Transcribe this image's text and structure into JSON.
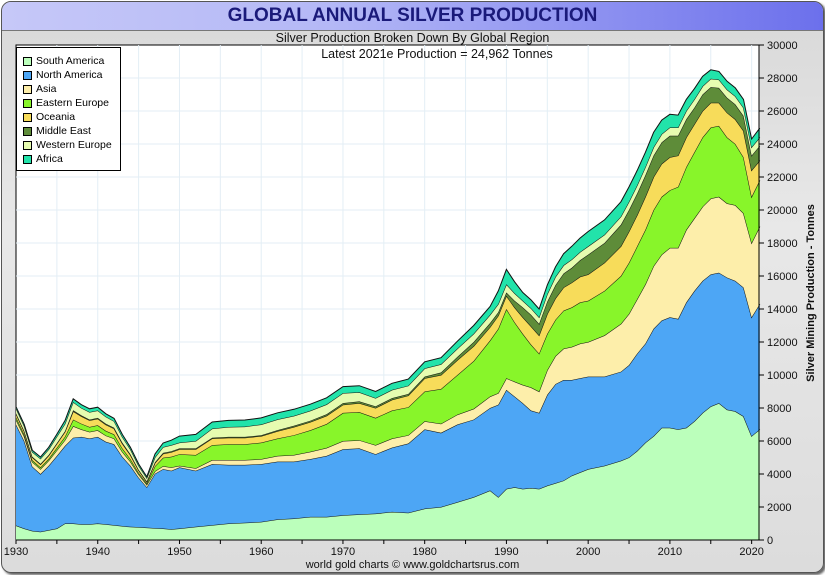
{
  "chart_data": {
    "type": "area",
    "stacked": true,
    "title": "GLOBAL ANNUAL SILVER PRODUCTION",
    "subtitle": "Silver Production Broken Down By Global Region",
    "annotation": "Latest 2021e Production = 24,962 Tonnes",
    "ylabel": "Silver Mining Production - Tonnes",
    "xlabel": "",
    "footer": "world gold charts © www.goldchartsrus.com",
    "xlim": [
      1930,
      2021
    ],
    "ylim": [
      0,
      30000
    ],
    "x_ticks": [
      1930,
      1940,
      1950,
      1960,
      1970,
      1980,
      1990,
      2000,
      2010,
      2020
    ],
    "y_ticks": [
      0,
      2000,
      4000,
      6000,
      8000,
      10000,
      12000,
      14000,
      16000,
      18000,
      20000,
      22000,
      24000,
      26000,
      28000,
      30000
    ],
    "grid": true,
    "legend_position": "top-left",
    "key_years": [
      1930,
      1931,
      1932,
      1933,
      1934,
      1935,
      1936,
      1937,
      1938,
      1939,
      1940,
      1941,
      1942,
      1943,
      1944,
      1945,
      1946,
      1947,
      1948,
      1949,
      1950,
      1952,
      1954,
      1956,
      1958,
      1960,
      1962,
      1964,
      1966,
      1968,
      1970,
      1972,
      1974,
      1976,
      1978,
      1980,
      1982,
      1984,
      1986,
      1988,
      1989,
      1990,
      1991,
      1992,
      1993,
      1994,
      1995,
      1996,
      1997,
      1998,
      1999,
      2000,
      2002,
      2004,
      2005,
      2006,
      2007,
      2008,
      2009,
      2010,
      2011,
      2012,
      2013,
      2014,
      2015,
      2016,
      2017,
      2018,
      2019,
      2020,
      2021
    ],
    "series": [
      {
        "name": "South America",
        "color": "#bbffbb",
        "values": [
          880,
          700,
          550,
          500,
          600,
          700,
          1000,
          1000,
          950,
          950,
          1000,
          950,
          900,
          850,
          800,
          780,
          750,
          720,
          700,
          650,
          700,
          800,
          900,
          1000,
          1050,
          1100,
          1250,
          1300,
          1400,
          1400,
          1500,
          1550,
          1600,
          1700,
          1650,
          1900,
          2000,
          2300,
          2600,
          3000,
          2600,
          3100,
          3200,
          3100,
          3150,
          3100,
          3300,
          3450,
          3600,
          3900,
          4100,
          4300,
          4500,
          4800,
          5000,
          5400,
          5900,
          6300,
          6800,
          6800,
          6700,
          6800,
          7200,
          7700,
          8100,
          8300,
          7900,
          7800,
          7500,
          6300,
          6700
        ]
      },
      {
        "name": "North America",
        "color": "#4da6f5",
        "values": [
          6120,
          5300,
          3900,
          3500,
          3900,
          4400,
          4700,
          5200,
          5300,
          5200,
          5250,
          5000,
          4900,
          4200,
          3700,
          3000,
          2450,
          3300,
          3600,
          3550,
          3700,
          3400,
          3700,
          3550,
          3500,
          3500,
          3500,
          3450,
          3500,
          3700,
          4000,
          4000,
          3600,
          3900,
          4200,
          4800,
          4500,
          4700,
          4700,
          5000,
          5600,
          6000,
          5500,
          5200,
          4700,
          4600,
          5500,
          6000,
          6100,
          5800,
          5700,
          5600,
          5400,
          5400,
          5600,
          5900,
          6000,
          6500,
          6500,
          6700,
          6700,
          7600,
          7900,
          8000,
          8000,
          7900,
          8000,
          7900,
          7800,
          7200,
          7600
        ]
      },
      {
        "name": "Asia",
        "color": "#fdeeaa",
        "values": [
          300,
          280,
          280,
          300,
          320,
          340,
          360,
          700,
          450,
          400,
          400,
          380,
          350,
          300,
          250,
          200,
          150,
          150,
          180,
          200,
          100,
          150,
          250,
          300,
          300,
          300,
          350,
          400,
          450,
          480,
          500,
          500,
          550,
          550,
          500,
          500,
          550,
          600,
          650,
          700,
          700,
          700,
          900,
          1100,
          1400,
          1300,
          1500,
          1700,
          1900,
          2000,
          2100,
          2100,
          2500,
          2900,
          3100,
          3300,
          3600,
          3800,
          4000,
          4200,
          4300,
          4400,
          4400,
          4500,
          4600,
          4600,
          4500,
          4600,
          4500,
          4500,
          4700
        ]
      },
      {
        "name": "Eastern Europe",
        "color": "#88f52a",
        "values": [
          150,
          120,
          100,
          100,
          100,
          150,
          200,
          400,
          350,
          300,
          300,
          280,
          250,
          200,
          150,
          100,
          80,
          300,
          500,
          650,
          700,
          800,
          900,
          950,
          950,
          1000,
          1050,
          1200,
          1300,
          1450,
          1700,
          1700,
          1650,
          1700,
          1700,
          1800,
          2100,
          2400,
          2900,
          3400,
          3900,
          4200,
          3600,
          3100,
          2600,
          2300,
          2200,
          2200,
          2300,
          2400,
          2500,
          2500,
          2700,
          2900,
          3100,
          3200,
          3300,
          3400,
          3500,
          3500,
          3700,
          3800,
          4000,
          4200,
          4300,
          4300,
          4000,
          3700,
          3400,
          2800,
          2800
        ]
      },
      {
        "name": "Oceania",
        "color": "#f7dc5a",
        "values": [
          200,
          180,
          180,
          180,
          200,
          250,
          300,
          500,
          450,
          400,
          400,
          380,
          350,
          300,
          250,
          150,
          100,
          200,
          250,
          280,
          300,
          350,
          400,
          400,
          400,
          400,
          450,
          500,
          500,
          500,
          500,
          550,
          600,
          650,
          700,
          800,
          850,
          900,
          900,
          800,
          800,
          800,
          900,
          1000,
          1100,
          1100,
          1200,
          1300,
          1400,
          1500,
          1550,
          1600,
          1700,
          1800,
          1900,
          1900,
          2000,
          2000,
          2000,
          2000,
          1900,
          1800,
          1700,
          1600,
          1500,
          1400,
          1500,
          1500,
          1600,
          1600,
          1200
        ]
      },
      {
        "name": "Middle East",
        "color": "#5e8c39",
        "values": [
          30,
          30,
          30,
          30,
          30,
          30,
          30,
          60,
          50,
          50,
          50,
          50,
          50,
          50,
          50,
          30,
          20,
          40,
          50,
          50,
          50,
          50,
          50,
          50,
          50,
          50,
          60,
          70,
          80,
          90,
          100,
          100,
          100,
          100,
          100,
          100,
          150,
          200,
          250,
          250,
          200,
          200,
          400,
          600,
          700,
          700,
          750,
          800,
          850,
          900,
          1000,
          1200,
          1200,
          1300,
          1300,
          1300,
          1300,
          1300,
          1300,
          1300,
          1200,
          1100,
          1000,
          1000,
          950,
          900,
          900,
          900,
          900,
          900,
          900
        ]
      },
      {
        "name": "Western Europe",
        "color": "#e6fcb0",
        "values": [
          300,
          300,
          300,
          320,
          350,
          400,
          450,
          500,
          450,
          450,
          450,
          430,
          400,
          350,
          300,
          250,
          200,
          300,
          350,
          370,
          350,
          450,
          550,
          600,
          620,
          650,
          650,
          600,
          600,
          600,
          600,
          550,
          500,
          500,
          500,
          500,
          500,
          500,
          500,
          500,
          500,
          500,
          450,
          400,
          400,
          400,
          450,
          500,
          500,
          500,
          500,
          500,
          500,
          500,
          500,
          500,
          500,
          500,
          500,
          500,
          500,
          500,
          500,
          500,
          500,
          500,
          500,
          500,
          500,
          500,
          500
        ]
      },
      {
        "name": "Africa",
        "color": "#22e3aa",
        "values": [
          100,
          100,
          100,
          100,
          120,
          150,
          200,
          200,
          200,
          200,
          200,
          180,
          170,
          150,
          120,
          100,
          80,
          200,
          250,
          300,
          400,
          400,
          400,
          400,
          400,
          400,
          400,
          400,
          400,
          400,
          400,
          400,
          400,
          400,
          400,
          400,
          400,
          450,
          500,
          500,
          800,
          900,
          700,
          500,
          500,
          500,
          550,
          600,
          700,
          800,
          850,
          900,
          900,
          900,
          900,
          900,
          900,
          900,
          850,
          800,
          750,
          700,
          650,
          600,
          550,
          500,
          500,
          500,
          500,
          500,
          562
        ]
      }
    ]
  }
}
